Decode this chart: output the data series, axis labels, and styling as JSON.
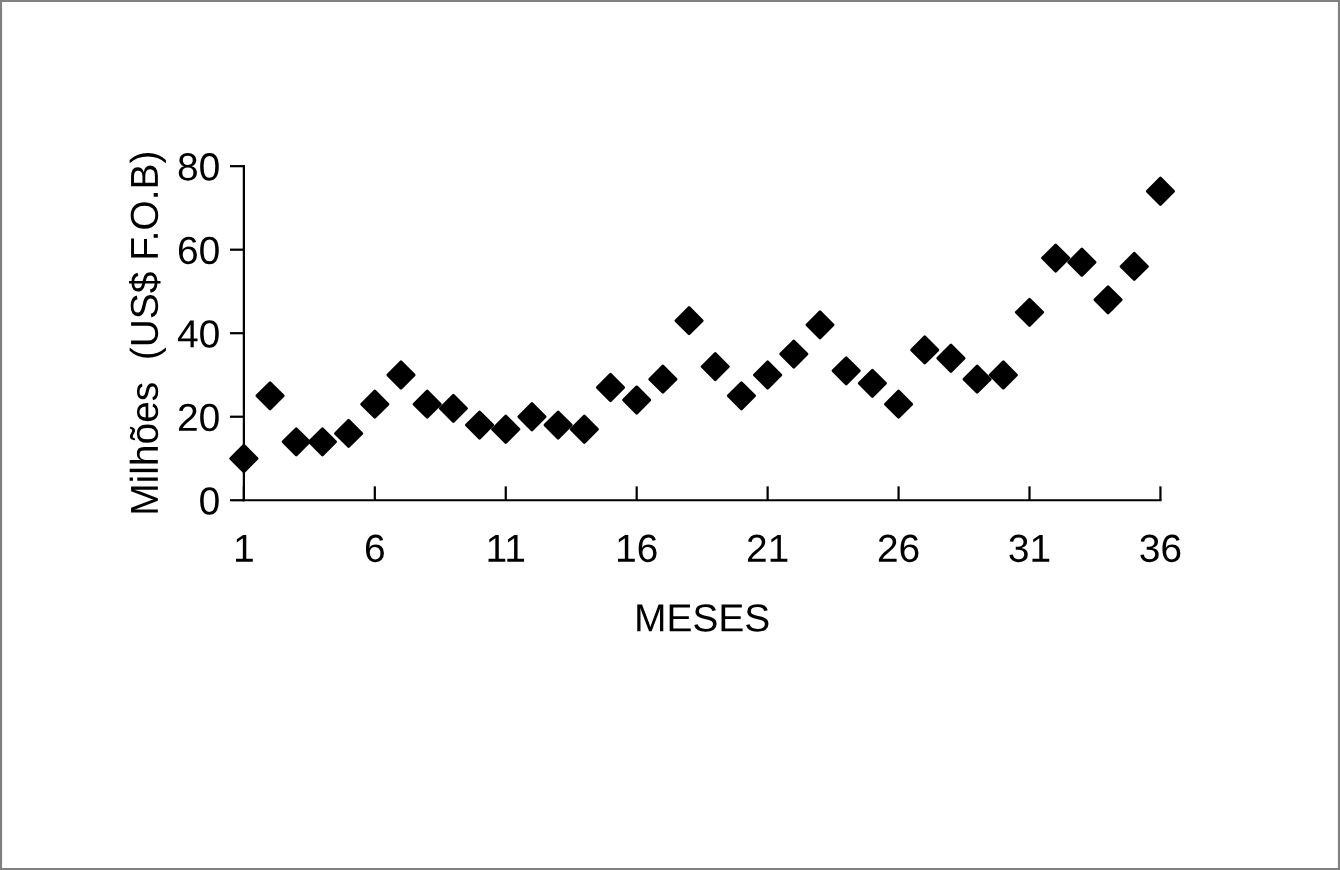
{
  "chart_data": {
    "type": "scatter",
    "xlabel": "MESES",
    "ylabel": "Milhões  (US$ F.O.B)",
    "x": [
      1,
      2,
      3,
      4,
      5,
      6,
      7,
      8,
      9,
      10,
      11,
      12,
      13,
      14,
      15,
      16,
      17,
      18,
      19,
      20,
      21,
      22,
      23,
      24,
      25,
      26,
      27,
      28,
      29,
      30,
      31,
      32,
      33,
      34,
      35,
      36
    ],
    "series": [
      {
        "color": "#000000",
        "values": [
          10,
          25,
          14,
          14,
          16,
          23,
          30,
          23,
          22,
          18,
          17,
          20,
          18,
          17,
          27,
          24,
          29,
          43,
          32,
          25,
          30,
          35,
          42,
          31,
          28,
          23,
          36,
          34,
          29,
          30,
          45,
          58,
          57,
          48,
          56,
          74
        ]
      }
    ],
    "xlim": [
      1,
      36
    ],
    "xticks": [
      1,
      6,
      11,
      16,
      21,
      26,
      31,
      36
    ],
    "ylim": [
      0,
      80
    ],
    "yticks": [
      0,
      20,
      40,
      60,
      80
    ],
    "marker": "diamond",
    "grid": false,
    "legend": false
  }
}
